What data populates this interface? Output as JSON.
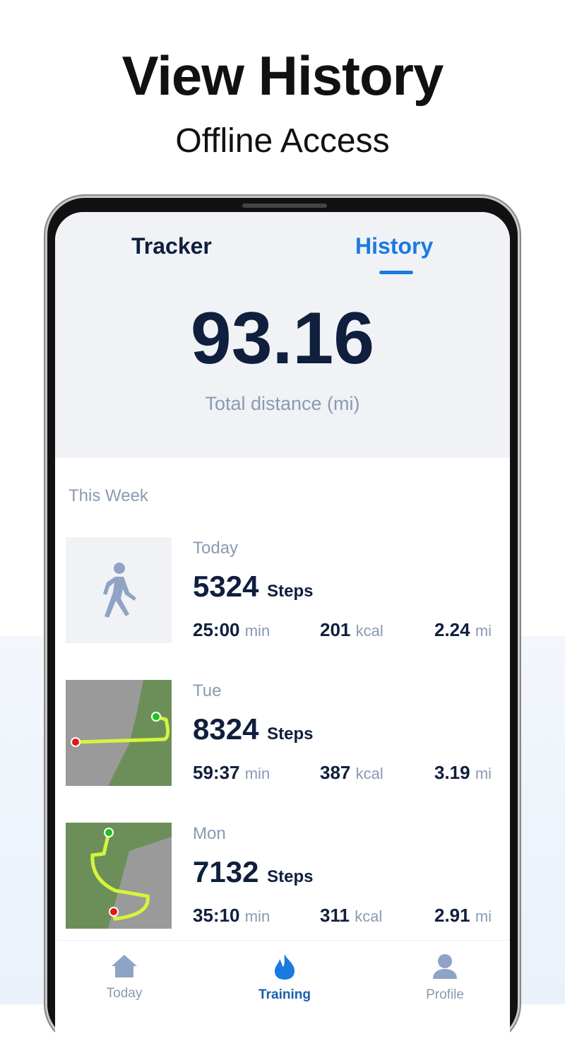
{
  "promo": {
    "headline": "View History",
    "subheadline": "Offline Access"
  },
  "tabs": [
    {
      "label": "Tracker",
      "active": false
    },
    {
      "label": "History",
      "active": true
    }
  ],
  "summary": {
    "total": "93.16",
    "label": "Total distance (mi)"
  },
  "section": "This Week",
  "entries": [
    {
      "day": "Today",
      "steps": "5324",
      "steps_unit": "Steps",
      "time": "25:00",
      "time_unit": "min",
      "kcal": "201",
      "kcal_unit": "kcal",
      "dist": "2.24",
      "dist_unit": "mi",
      "thumb": "walking-icon"
    },
    {
      "day": "Tue",
      "steps": "8324",
      "steps_unit": "Steps",
      "time": "59:37",
      "time_unit": "min",
      "kcal": "387",
      "kcal_unit": "kcal",
      "dist": "3.19",
      "dist_unit": "mi",
      "thumb": "route-map"
    },
    {
      "day": "Mon",
      "steps": "7132",
      "steps_unit": "Steps",
      "time": "35:10",
      "time_unit": "min",
      "kcal": "311",
      "kcal_unit": "kcal",
      "dist": "2.91",
      "dist_unit": "mi",
      "thumb": "route-map"
    }
  ],
  "nav": [
    {
      "label": "Today",
      "icon": "home-icon"
    },
    {
      "label": "Training",
      "icon": "flame-icon",
      "active": true
    },
    {
      "label": "Profile",
      "icon": "person-icon"
    }
  ],
  "colors": {
    "accent": "#1a7ae0",
    "dark": "#0f1f3d",
    "muted": "#8a9ab3",
    "route": "#d4f53c"
  }
}
